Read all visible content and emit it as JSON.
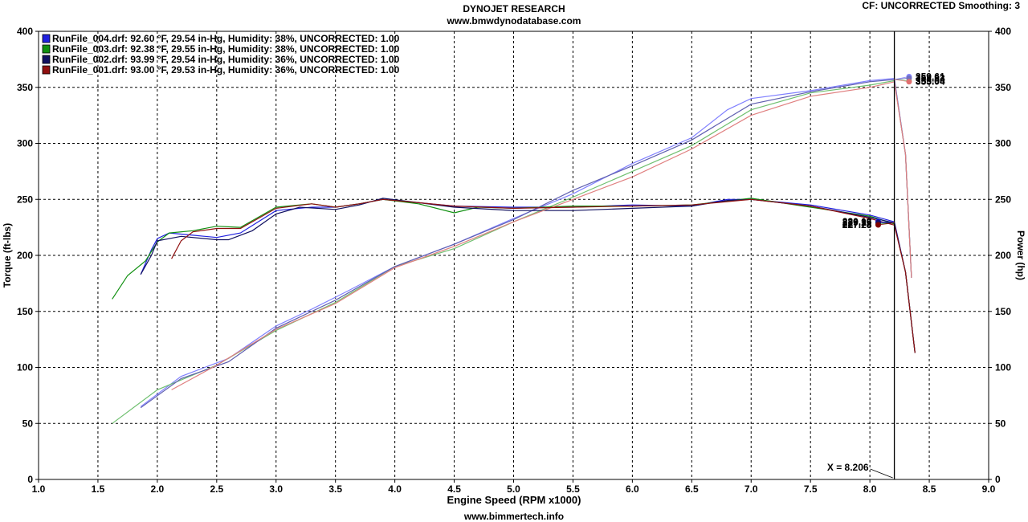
{
  "header": {
    "title": "DYNOJET RESEARCH",
    "subtitle": "www.bmwdynodatabase.com",
    "cf_text": "CF: UNCORRECTED  Smoothing: 3"
  },
  "footer": {
    "text": "www.bimmertech.info"
  },
  "chart_data": {
    "type": "line",
    "xlabel": "Engine Speed (RPM x1000)",
    "ylabel_left": "Torque (ft-lbs)",
    "ylabel_right": "Power (hp)",
    "xlim": [
      1.0,
      9.0
    ],
    "ylim_left": [
      0,
      400
    ],
    "ylim_right": [
      0,
      400
    ],
    "x_ticks": [
      "1.0",
      "1.5",
      "2.0",
      "2.5",
      "3.0",
      "3.5",
      "4.0",
      "4.5",
      "5.0",
      "5.5",
      "6.0",
      "6.5",
      "7.0",
      "7.5",
      "8.0",
      "8.5",
      "9.0"
    ],
    "y_ticks": [
      "0",
      "50",
      "100",
      "150",
      "200",
      "250",
      "300",
      "350",
      "400"
    ],
    "grid": true,
    "legend_position": "top-left",
    "cursor": {
      "x": 8.206,
      "label": "X = 8.206"
    },
    "series": [
      {
        "name": "RunFile_004.drf: 92.60 °F, 29.54 in-Hg, Humidity: 38%, UNCORRECTED: 1.00",
        "color": "#2020e0",
        "hp_color": "#8080ff",
        "torque": [
          [
            1.86,
            183
          ],
          [
            1.95,
            205
          ],
          [
            2.0,
            215
          ],
          [
            2.1,
            220
          ],
          [
            2.3,
            218
          ],
          [
            2.5,
            216
          ],
          [
            2.7,
            220
          ],
          [
            3.0,
            240
          ],
          [
            3.3,
            243
          ],
          [
            3.5,
            243
          ],
          [
            3.7,
            246
          ],
          [
            3.9,
            250
          ],
          [
            4.2,
            247
          ],
          [
            4.5,
            244
          ],
          [
            5.0,
            243
          ],
          [
            5.5,
            243
          ],
          [
            6.0,
            245
          ],
          [
            6.5,
            244
          ],
          [
            6.8,
            250
          ],
          [
            7.0,
            250
          ],
          [
            7.5,
            245
          ],
          [
            8.0,
            236
          ],
          [
            8.206,
            230
          ],
          [
            8.3,
            185
          ],
          [
            8.38,
            113
          ]
        ],
        "power": [
          [
            1.86,
            65
          ],
          [
            2.2,
            92
          ],
          [
            2.6,
            108
          ],
          [
            3.0,
            137
          ],
          [
            3.3,
            152
          ],
          [
            3.6,
            168
          ],
          [
            4.0,
            190
          ],
          [
            4.5,
            210
          ],
          [
            5.0,
            233
          ],
          [
            5.5,
            255
          ],
          [
            6.0,
            282
          ],
          [
            6.5,
            305
          ],
          [
            6.8,
            330
          ],
          [
            7.0,
            340
          ],
          [
            7.5,
            347
          ],
          [
            8.0,
            356
          ],
          [
            8.206,
            358
          ],
          [
            8.3,
            290
          ],
          [
            8.35,
            180
          ]
        ],
        "torque_marker": 230.16,
        "torque_marker_color": "#1010ee",
        "power_marker": 359.61,
        "power_marker_color": "#8888ff"
      },
      {
        "name": "RunFile_003.drf: 92.38 °F, 29.55 in-Hg, Humidity: 38%, UNCORRECTED: 1.00",
        "color": "#109010",
        "hp_color": "#70c070",
        "torque": [
          [
            1.62,
            161
          ],
          [
            1.75,
            182
          ],
          [
            1.9,
            195
          ],
          [
            2.0,
            212
          ],
          [
            2.1,
            220
          ],
          [
            2.3,
            222
          ],
          [
            2.5,
            226
          ],
          [
            2.7,
            225
          ],
          [
            3.0,
            243
          ],
          [
            3.3,
            246
          ],
          [
            3.5,
            243
          ],
          [
            3.7,
            246
          ],
          [
            3.9,
            250
          ],
          [
            4.2,
            246
          ],
          [
            4.5,
            238
          ],
          [
            4.7,
            243
          ],
          [
            5.0,
            242
          ],
          [
            5.5,
            244
          ],
          [
            6.0,
            244
          ],
          [
            6.5,
            245
          ],
          [
            7.0,
            251
          ],
          [
            7.5,
            243
          ],
          [
            8.0,
            235
          ],
          [
            8.206,
            228
          ],
          [
            8.3,
            185
          ],
          [
            8.38,
            113
          ]
        ],
        "power": [
          [
            1.62,
            50
          ],
          [
            2.0,
            80
          ],
          [
            2.5,
            102
          ],
          [
            3.0,
            133
          ],
          [
            3.5,
            158
          ],
          [
            4.0,
            190
          ],
          [
            4.5,
            206
          ],
          [
            5.0,
            230
          ],
          [
            5.5,
            252
          ],
          [
            6.0,
            275
          ],
          [
            6.5,
            298
          ],
          [
            7.0,
            330
          ],
          [
            7.5,
            345
          ],
          [
            8.0,
            352
          ],
          [
            8.206,
            356
          ],
          [
            8.3,
            290
          ],
          [
            8.35,
            180
          ]
        ],
        "torque_marker": 227.78,
        "torque_marker_color": "#107010",
        "power_marker": 355.9,
        "power_marker_color": "#80c080"
      },
      {
        "name": "RunFile_002.drf: 93.99 °F, 29.54 in-Hg, Humidity: 36%, UNCORRECTED: 1.00",
        "color": "#101060",
        "hp_color": "#6060b0",
        "torque": [
          [
            1.86,
            183
          ],
          [
            1.95,
            200
          ],
          [
            2.0,
            213
          ],
          [
            2.2,
            217
          ],
          [
            2.5,
            214
          ],
          [
            2.6,
            214
          ],
          [
            2.8,
            222
          ],
          [
            3.0,
            237
          ],
          [
            3.2,
            243
          ],
          [
            3.5,
            241
          ],
          [
            3.7,
            245
          ],
          [
            3.9,
            251
          ],
          [
            4.2,
            247
          ],
          [
            4.5,
            243
          ],
          [
            5.0,
            240
          ],
          [
            5.5,
            240
          ],
          [
            6.0,
            242
          ],
          [
            6.5,
            244
          ],
          [
            6.8,
            249
          ],
          [
            7.0,
            250
          ],
          [
            7.5,
            244
          ],
          [
            8.0,
            234
          ],
          [
            8.206,
            229
          ],
          [
            8.3,
            185
          ],
          [
            8.38,
            113
          ]
        ],
        "power": [
          [
            1.86,
            64
          ],
          [
            2.2,
            90
          ],
          [
            2.6,
            105
          ],
          [
            3.0,
            135
          ],
          [
            3.5,
            160
          ],
          [
            4.0,
            190
          ],
          [
            4.5,
            210
          ],
          [
            5.0,
            232
          ],
          [
            5.5,
            258
          ],
          [
            6.0,
            280
          ],
          [
            6.5,
            303
          ],
          [
            7.0,
            335
          ],
          [
            7.5,
            346
          ],
          [
            8.0,
            355
          ],
          [
            8.206,
            357
          ],
          [
            8.3,
            290
          ],
          [
            8.35,
            180
          ]
        ],
        "torque_marker": 229.27,
        "torque_marker_color": "#101070",
        "power_marker": 358.23,
        "power_marker_color": "#7070c0"
      },
      {
        "name": "RunFile_001.drf: 93.00 °F, 29.53 in-Hg, Humidity: 36%, UNCORRECTED: 1.00",
        "color": "#901010",
        "hp_color": "#e08080",
        "torque": [
          [
            2.12,
            197
          ],
          [
            2.2,
            213
          ],
          [
            2.3,
            221
          ],
          [
            2.5,
            224
          ],
          [
            2.7,
            224
          ],
          [
            3.0,
            242
          ],
          [
            3.3,
            246
          ],
          [
            3.5,
            243
          ],
          [
            3.7,
            246
          ],
          [
            3.9,
            250
          ],
          [
            4.2,
            247
          ],
          [
            4.5,
            244
          ],
          [
            5.0,
            242
          ],
          [
            5.5,
            243
          ],
          [
            6.0,
            244
          ],
          [
            6.5,
            245
          ],
          [
            7.0,
            250
          ],
          [
            7.5,
            244
          ],
          [
            8.0,
            233
          ],
          [
            8.206,
            227
          ],
          [
            8.3,
            185
          ],
          [
            8.38,
            113
          ]
        ],
        "power": [
          [
            2.12,
            80
          ],
          [
            2.5,
            102
          ],
          [
            3.0,
            134
          ],
          [
            3.5,
            157
          ],
          [
            4.0,
            189
          ],
          [
            4.5,
            208
          ],
          [
            5.0,
            230
          ],
          [
            5.5,
            250
          ],
          [
            6.0,
            270
          ],
          [
            6.5,
            295
          ],
          [
            7.0,
            325
          ],
          [
            7.5,
            342
          ],
          [
            8.0,
            350
          ],
          [
            8.206,
            355
          ],
          [
            8.3,
            290
          ],
          [
            8.35,
            180
          ]
        ],
        "torque_marker": 227.23,
        "torque_marker_color": "#800000",
        "power_marker": 355.04,
        "power_marker_color": "#e07070"
      }
    ]
  }
}
